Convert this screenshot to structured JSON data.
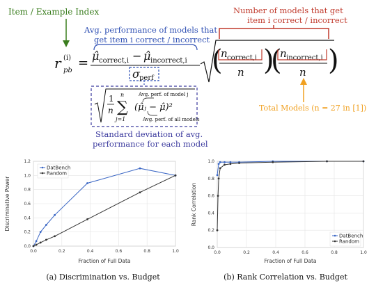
{
  "formula": {
    "lhs_symbol": "r",
    "lhs_sub": "pb",
    "lhs_sup": "(i)",
    "mu_correct": "μ̂",
    "mu_correct_sub": "correct,i",
    "minus": "−",
    "mu_incorrect": "μ̂",
    "mu_incorrect_sub": "incorrect,i",
    "sigma": "σ",
    "sigma_sub": "perf",
    "n_correct": "n",
    "n_correct_sub": "correct,i",
    "n_incorrect": "n",
    "n_incorrect_sub": "incorrect,i",
    "n_denom": "n",
    "std_frac_num": "1",
    "std_frac_den": "n",
    "sum_upper": "n",
    "sum_lower": "j=1",
    "sum_term": "(μ̂ⱼ − μ̂)²",
    "note_model_j": "Avg. perf. of model j",
    "note_all_models": "Avg. perf. of all models"
  },
  "annotations": {
    "item_index": "Item / Example Index",
    "avg_perf_line1": "Avg. performance of models that",
    "avg_perf_line2": "get item i correct / incorrect",
    "num_models_line1": "Number of models that get",
    "num_models_line2": "item i correct / incorrect",
    "std_dev_line1": "Standard deviation of avg.",
    "std_dev_line2": "performance for each model",
    "total_models": "Total Models (n = 27 in [1])"
  },
  "colors": {
    "green": "#3a7d1e",
    "blue": "#2e4fb3",
    "red": "#c0392b",
    "orange": "#f0a020",
    "purple": "#3b3a9e",
    "series_datbench": "#3a66c4",
    "series_random": "#333333"
  },
  "chart_data": [
    {
      "type": "line",
      "xlabel": "Fraction of Full Data",
      "ylabel": "Discriminative Power",
      "xlim": [
        0,
        1.0
      ],
      "ylim": [
        0,
        1.2
      ],
      "xticks": [
        "0.0",
        "0.2",
        "0.4",
        "0.6",
        "0.8",
        "1.0"
      ],
      "yticks": [
        "0.0",
        "0.2",
        "0.4",
        "0.6",
        "0.8",
        "1.0",
        "1.2"
      ],
      "grid": true,
      "legend": "top-left",
      "caption": "(a) Discrimination vs. Budget",
      "series": [
        {
          "name": "DatBench",
          "x": [
            0.0,
            0.02,
            0.05,
            0.09,
            0.15,
            0.38,
            0.75,
            1.0
          ],
          "y": [
            0.0,
            0.07,
            0.2,
            0.3,
            0.44,
            0.89,
            1.1,
            1.0
          ]
        },
        {
          "name": "Random",
          "x": [
            0.0,
            0.02,
            0.05,
            0.09,
            0.15,
            0.38,
            0.75,
            1.0
          ],
          "y": [
            0.0,
            0.02,
            0.05,
            0.09,
            0.14,
            0.38,
            0.76,
            1.0
          ]
        }
      ]
    },
    {
      "type": "line",
      "xlabel": "Fraction of Full Data",
      "ylabel": "Rank Correlation",
      "xlim": [
        0,
        1.0
      ],
      "ylim": [
        0,
        1.0
      ],
      "xticks": [
        "0.0",
        "0.2",
        "0.4",
        "0.6",
        "0.8",
        "1.0"
      ],
      "yticks": [
        "0.0",
        "0.2",
        "0.4",
        "0.6",
        "0.8",
        "1.0"
      ],
      "grid": true,
      "legend": "bottom-right",
      "caption": "(b) Rank Correlation vs. Budget",
      "series": [
        {
          "name": "DatBench",
          "x": [
            0.0,
            0.01,
            0.02,
            0.05,
            0.09,
            0.15,
            0.38,
            0.75,
            1.0
          ],
          "y": [
            0.84,
            0.97,
            0.99,
            0.99,
            0.99,
            0.99,
            1.0,
            1.0,
            1.0
          ]
        },
        {
          "name": "Random",
          "x": [
            0.0,
            0.005,
            0.01,
            0.02,
            0.05,
            0.09,
            0.15,
            0.38,
            0.75,
            1.0
          ],
          "y": [
            0.2,
            0.6,
            0.8,
            0.92,
            0.96,
            0.97,
            0.98,
            0.99,
            1.0,
            1.0
          ]
        }
      ]
    }
  ]
}
